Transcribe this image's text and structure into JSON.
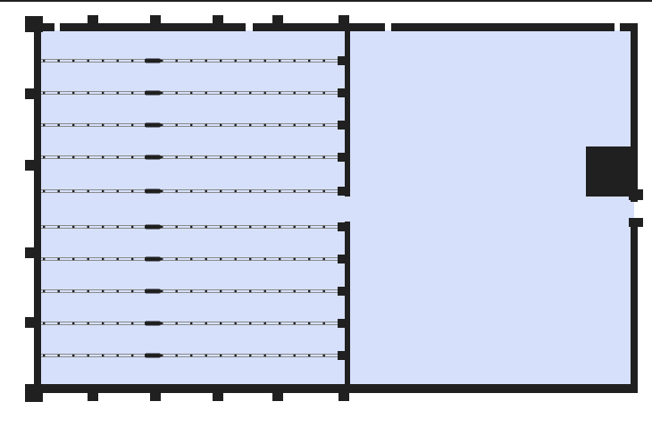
{
  "plan": {
    "floor_color": "#d6e0fb",
    "wall_color": "#202020",
    "rail_color": "#8a8a8a",
    "divider_color": "#303030",
    "rows": [
      {
        "id": "row-1"
      },
      {
        "id": "row-2"
      },
      {
        "id": "row-3"
      },
      {
        "id": "row-4"
      },
      {
        "id": "row-5"
      },
      {
        "id": "row-6"
      },
      {
        "id": "row-7"
      },
      {
        "id": "row-8"
      },
      {
        "id": "row-9"
      },
      {
        "id": "row-10"
      }
    ],
    "top_columns": 6,
    "bottom_columns": 6,
    "left_pilasters": 6
  }
}
